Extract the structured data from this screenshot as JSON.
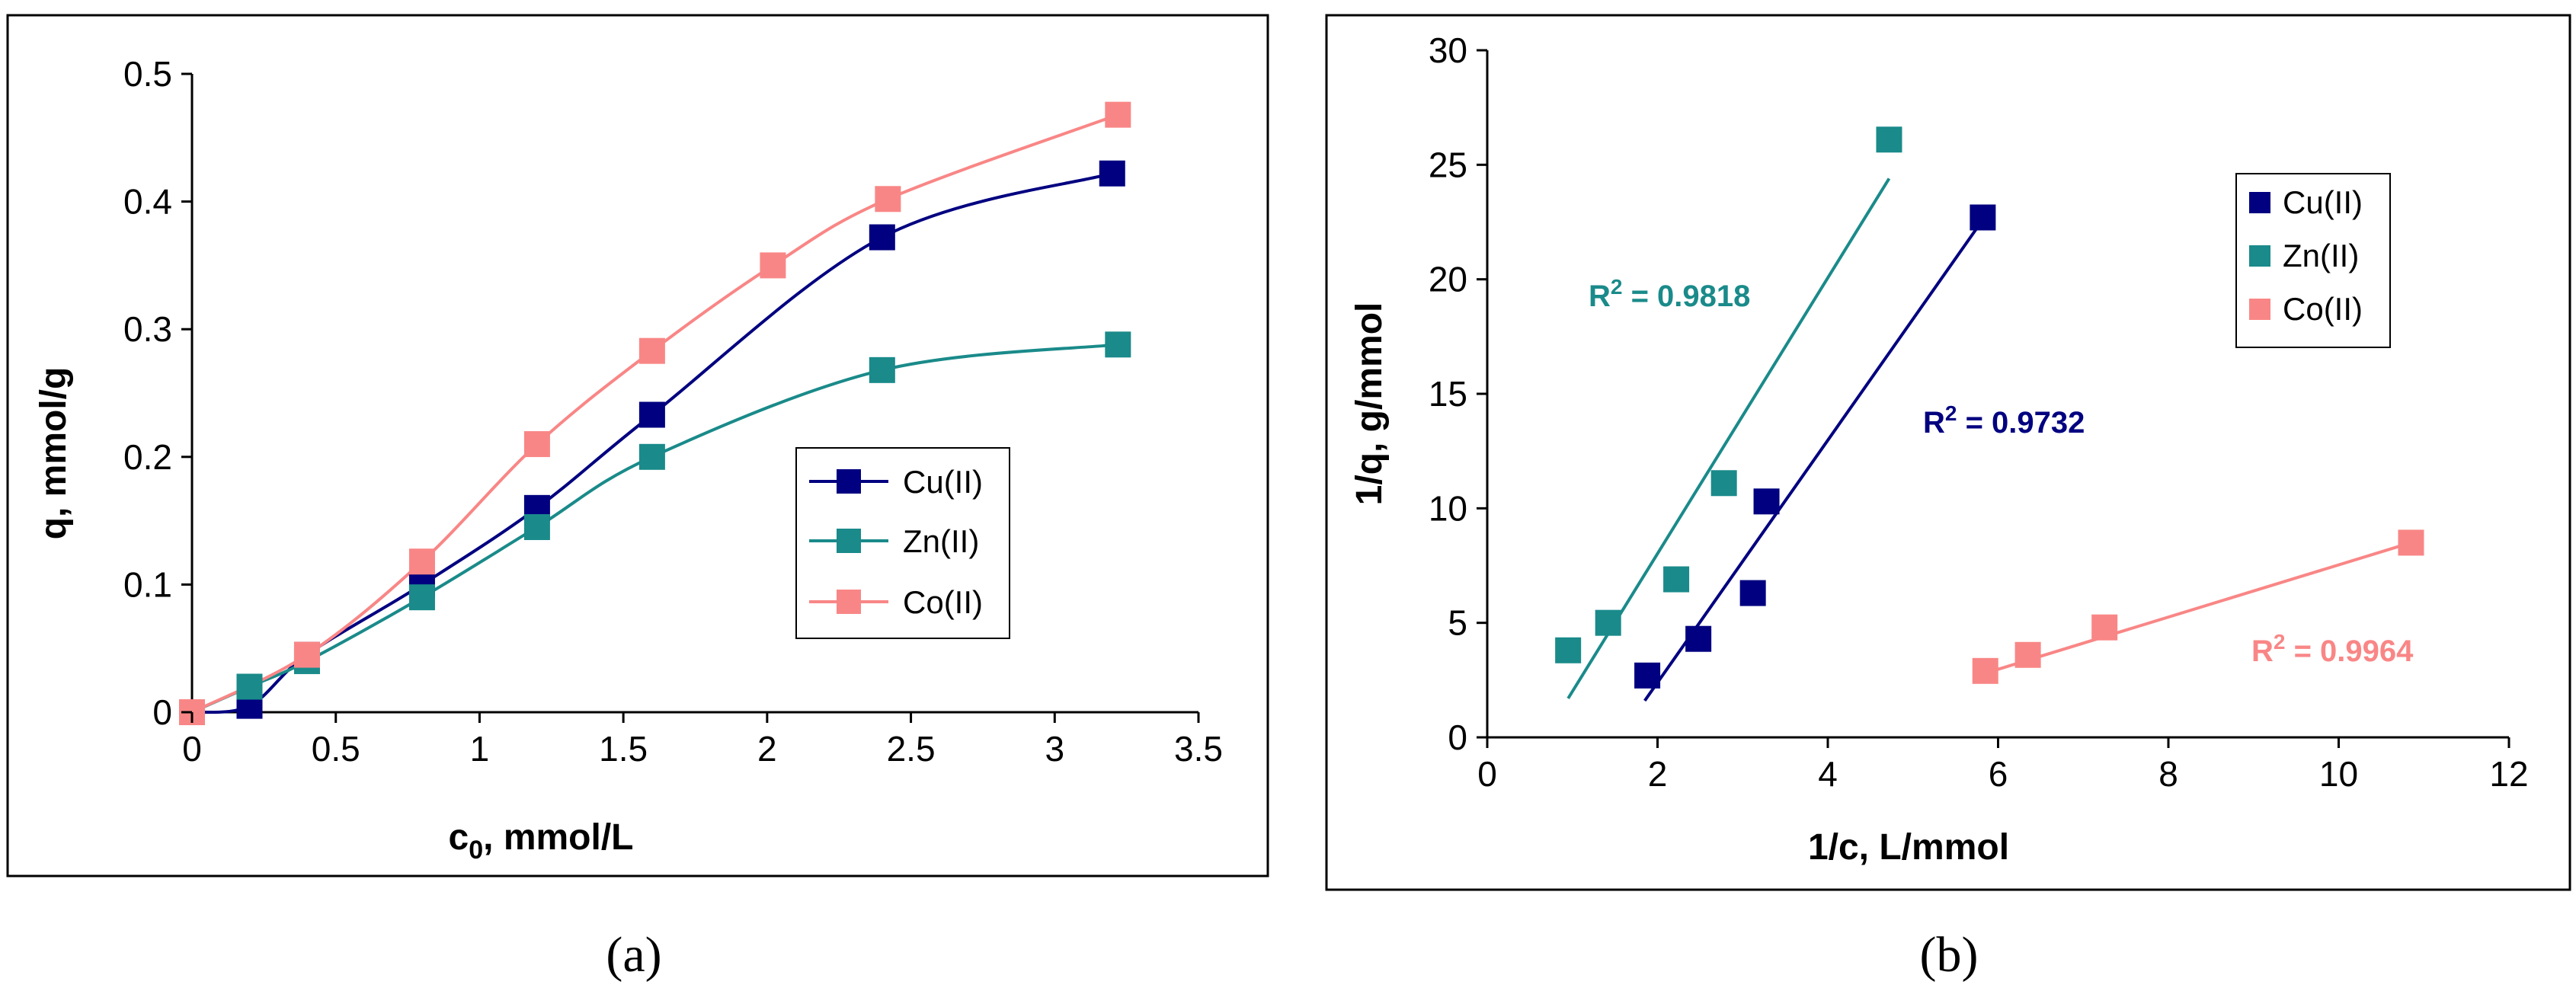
{
  "figure": {
    "panel_a_caption": "(a)",
    "panel_b_caption": "(b)"
  },
  "chart_data": [
    {
      "id": "a",
      "type": "line",
      "xlabel": "c",
      "xlabel_sub": "0",
      "xlabel_rest": ", mmol/L",
      "ylabel": "q, mmol/g",
      "xlim": [
        0,
        3.5
      ],
      "ylim": [
        0,
        0.5
      ],
      "xticks": [
        0,
        0.5,
        1,
        1.5,
        2,
        2.5,
        3,
        3.5
      ],
      "yticks": [
        0,
        0.1,
        0.2,
        0.3,
        0.4,
        0.5
      ],
      "xtick_labels": [
        "0",
        "0.5",
        "1",
        "1.5",
        "2",
        "2.5",
        "3",
        "3.5"
      ],
      "ytick_labels": [
        "0",
        "0.1",
        "0.2",
        "0.3",
        "0.4",
        "0.5"
      ],
      "legend_position": "right",
      "series": [
        {
          "name": "Cu(II)",
          "color": "#000080",
          "x": [
            0,
            0.2,
            0.4,
            0.8,
            1.2,
            1.6,
            2.4,
            3.2
          ],
          "y": [
            0,
            0.005,
            0.045,
            0.1,
            0.16,
            0.233,
            0.372,
            0.422
          ]
        },
        {
          "name": "Zn(II)",
          "color": "#1a8a8a",
          "x": [
            0,
            0.2,
            0.4,
            0.8,
            1.2,
            1.6,
            2.4,
            3.22
          ],
          "y": [
            0,
            0.02,
            0.04,
            0.09,
            0.145,
            0.2,
            0.268,
            0.288
          ]
        },
        {
          "name": "Co(II)",
          "color": "#f98686",
          "x": [
            0,
            0.4,
            0.8,
            1.2,
            1.6,
            2.02,
            2.42,
            3.22
          ],
          "y": [
            0,
            0.045,
            0.118,
            0.21,
            0.283,
            0.35,
            0.402,
            0.468
          ]
        }
      ]
    },
    {
      "id": "b",
      "type": "scatter",
      "xlabel": "1/c, L/mmol",
      "ylabel": "1/q, g/mmol",
      "xlim": [
        0,
        12
      ],
      "ylim": [
        0,
        30
      ],
      "xticks": [
        0,
        2,
        4,
        6,
        8,
        10,
        12
      ],
      "yticks": [
        0,
        5,
        10,
        15,
        20,
        25,
        30
      ],
      "xtick_labels": [
        "0",
        "2",
        "4",
        "6",
        "8",
        "10",
        "12"
      ],
      "ytick_labels": [
        "0",
        "5",
        "10",
        "15",
        "20",
        "25",
        "30"
      ],
      "legend_position": "right",
      "series": [
        {
          "name": "Cu(II)",
          "color": "#000080",
          "x": [
            1.88,
            2.48,
            3.12,
            3.28,
            5.82
          ],
          "y": [
            2.7,
            4.3,
            6.3,
            10.3,
            22.7
          ],
          "trend": {
            "x": [
              1.85,
              5.82
            ],
            "y": [
              1.6,
              22.6
            ]
          },
          "r2_label": "R",
          "r2_sup": "2",
          "r2_value": " = 0.9732"
        },
        {
          "name": "Zn(II)",
          "color": "#1a8a8a",
          "x": [
            0.95,
            1.42,
            2.22,
            2.78,
            4.72
          ],
          "y": [
            3.8,
            5.0,
            6.9,
            11.1,
            26.1
          ],
          "trend": {
            "x": [
              0.95,
              4.72
            ],
            "y": [
              1.7,
              24.4
            ]
          },
          "r2_label": "R",
          "r2_sup": "2",
          "r2_value": " = 0.9818"
        },
        {
          "name": "Co(II)",
          "color": "#f98686",
          "x": [
            5.85,
            6.35,
            7.25,
            10.85
          ],
          "y": [
            2.9,
            3.6,
            4.8,
            8.5
          ],
          "trend": {
            "x": [
              5.85,
              10.85
            ],
            "y": [
              2.8,
              8.5
            ]
          },
          "r2_label": "R",
          "r2_sup": "2",
          "r2_value": " = 0.9964"
        }
      ]
    }
  ]
}
